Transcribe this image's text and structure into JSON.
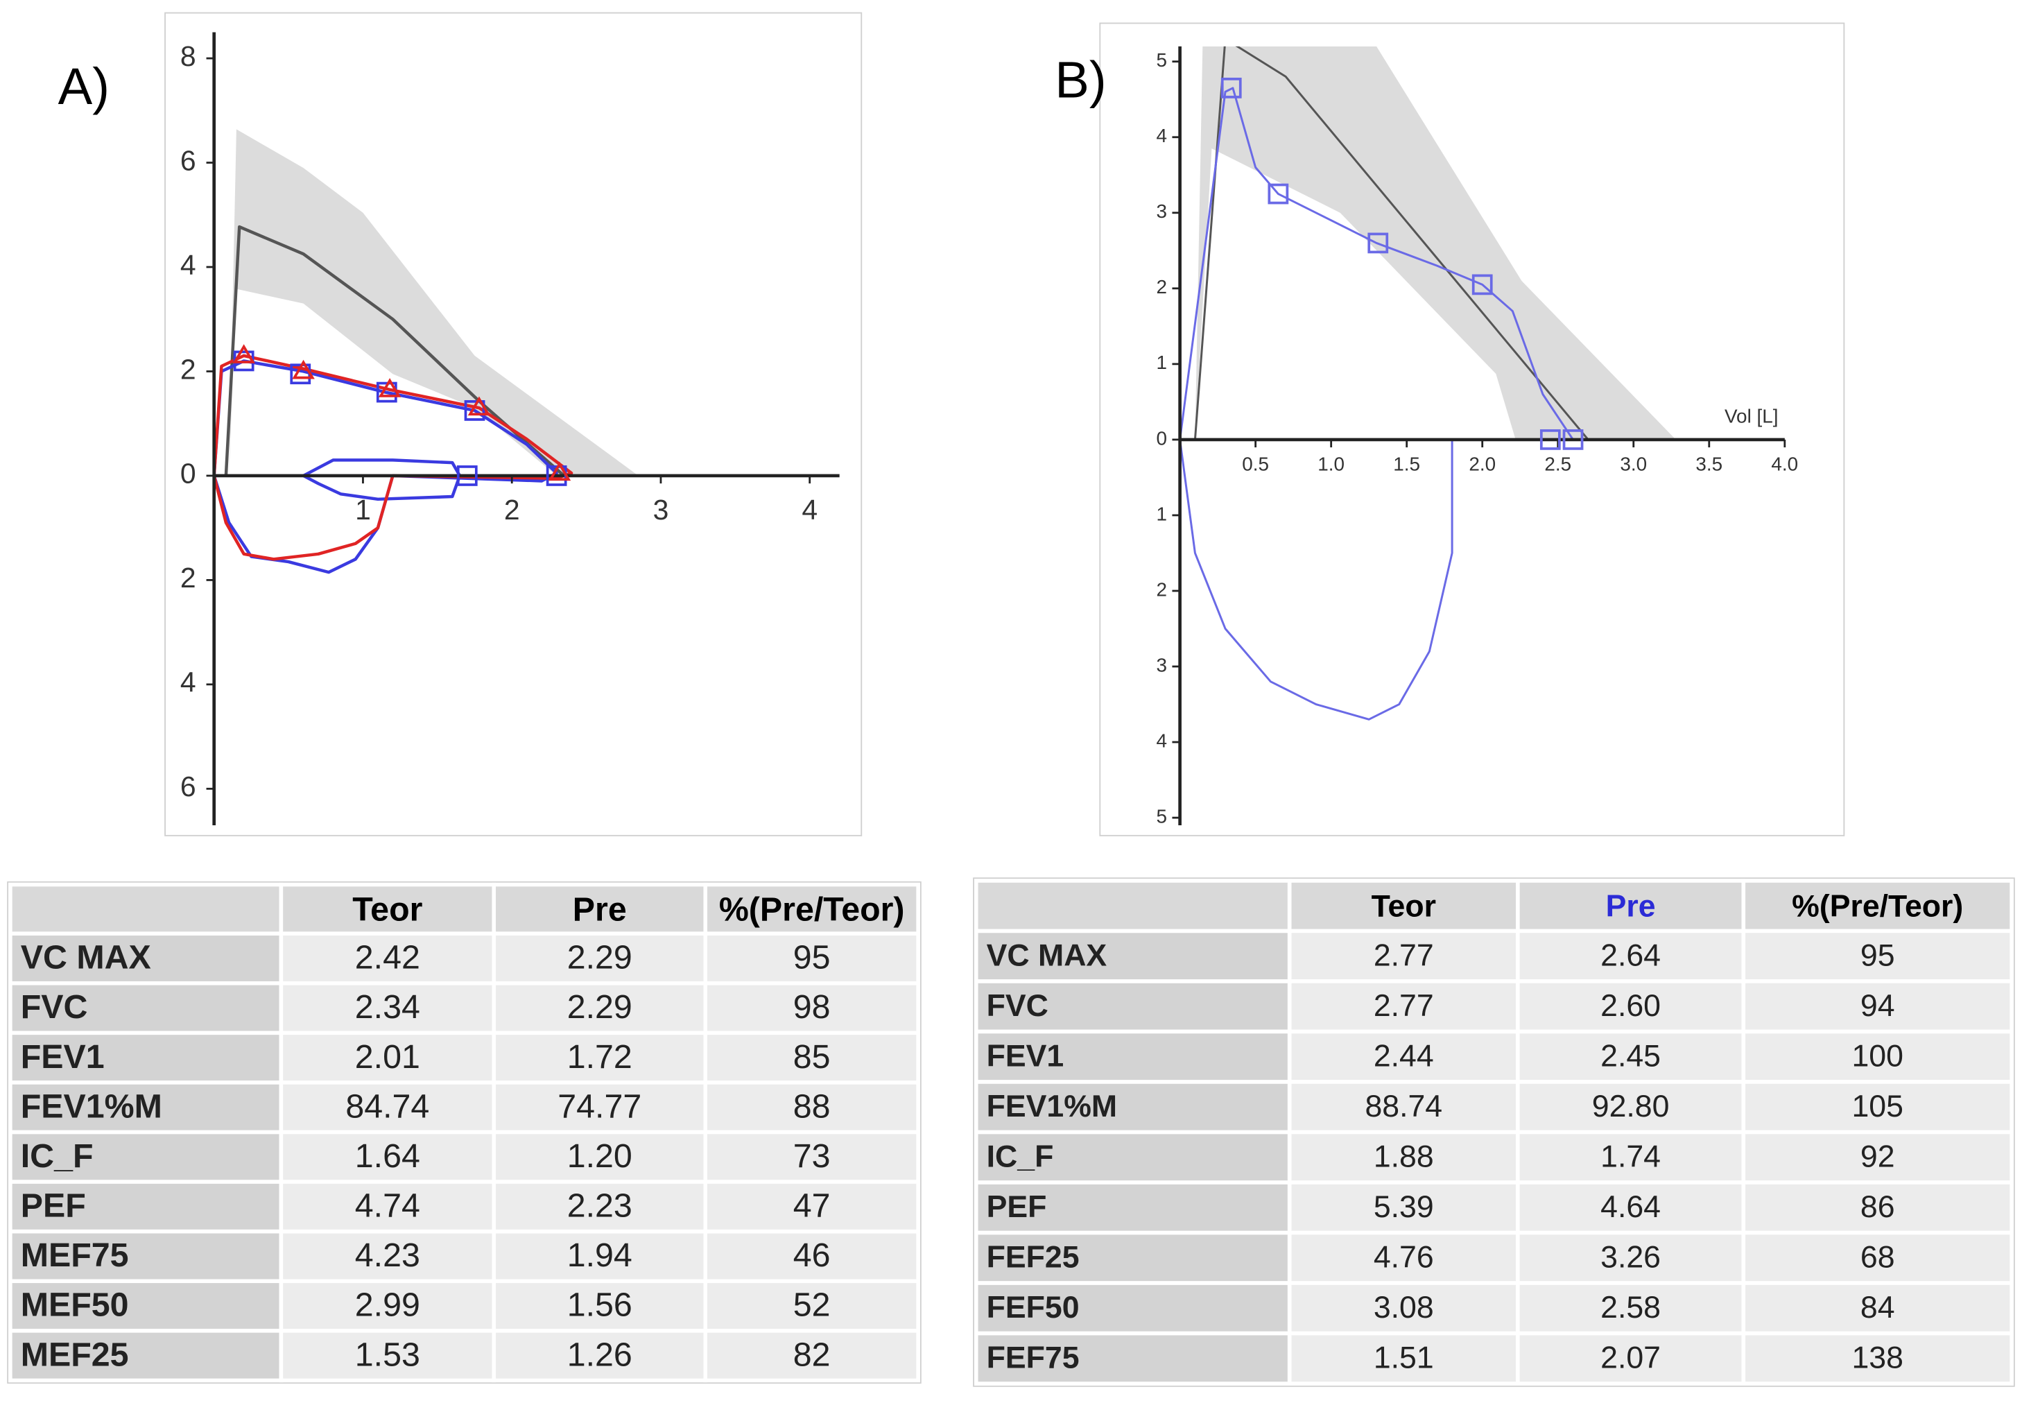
{
  "chart_data": [
    {
      "type": "line",
      "title": "A)",
      "xlim": [
        0,
        4.2
      ],
      "ylim": [
        -6.7,
        8.5
      ],
      "xticks": [
        1,
        2,
        3,
        4
      ],
      "yticks": [
        8,
        6,
        4,
        2,
        0,
        {
          "value": -2,
          "label": "2"
        },
        {
          "value": -4,
          "label": "4"
        },
        {
          "value": -6,
          "label": "6"
        }
      ],
      "band": {
        "color": "#dcdcdc",
        "x": [
          0.1,
          0.15,
          0.6,
          1.0,
          1.75,
          2.85,
          2.3,
          1.75,
          1.2,
          0.6,
          0.15
        ],
        "values": [
          0,
          6.64,
          5.9,
          5.04,
          2.3,
          0,
          0,
          1.3,
          1.95,
          3.3,
          3.58
        ]
      },
      "series": [
        {
          "color": "#555555",
          "x": [
            0.08,
            0.17,
            0.6,
            1.2,
            1.78,
            2.35
          ],
          "values": [
            0,
            4.77,
            4.25,
            3.0,
            1.43,
            0
          ]
        },
        {
          "color": "#3a3ae0",
          "x": [
            0,
            0.05,
            0.2,
            0.6,
            1.15,
            1.75,
            2.1,
            2.3,
            2.2,
            1.2,
            1.1,
            0.95,
            0.77,
            0.5,
            0.25,
            0.1,
            0
          ],
          "values": [
            0,
            2.0,
            2.2,
            2.0,
            1.6,
            1.25,
            0.6,
            0.05,
            -0.1,
            0,
            -1.0,
            -1.6,
            -1.85,
            -1.65,
            -1.55,
            -0.9,
            0
          ]
        },
        {
          "color": "#3a3ae0",
          "x": [
            0.6,
            0.8,
            1.2,
            1.6,
            1.65,
            1.6,
            1.1,
            0.85,
            0.7,
            0.6
          ],
          "values": [
            0,
            0.3,
            0.3,
            0.25,
            0,
            -0.4,
            -0.45,
            -0.35,
            -0.15,
            0
          ]
        },
        {
          "color": "#e02424",
          "x": [
            0,
            0.05,
            0.2,
            0.6,
            1.18,
            1.78,
            2.1,
            2.4,
            2.3,
            1.2,
            1.1,
            0.95,
            0.7,
            0.4,
            0.2,
            0.08,
            0
          ],
          "values": [
            0,
            2.1,
            2.3,
            2.05,
            1.65,
            1.3,
            0.7,
            0.05,
            -0.05,
            0,
            -1.0,
            -1.3,
            -1.5,
            -1.6,
            -1.5,
            -0.9,
            0
          ]
        },
        {
          "color": "#3a3ae0",
          "marker": "square",
          "x": [
            0.2,
            0.58,
            1.16,
            1.75,
            2.3,
            1.7
          ],
          "values": [
            2.2,
            1.95,
            1.6,
            1.25,
            0,
            0
          ]
        },
        {
          "color": "#e02424",
          "marker": "triangle",
          "x": [
            0.2,
            0.6,
            1.18,
            1.78,
            2.32
          ],
          "values": [
            2.3,
            2.0,
            1.65,
            1.3,
            0.05
          ]
        }
      ]
    },
    {
      "type": "line",
      "title": "B)",
      "x_label": "Vol [L]",
      "xlim": [
        0,
        4.0
      ],
      "ylim": [
        -5.1,
        5.2
      ],
      "xticks": [
        0.5,
        {
          "value": 1,
          "label": "1.0"
        },
        1.5,
        {
          "value": 2,
          "label": "2.0"
        },
        2.5,
        {
          "value": 3,
          "label": "3.0"
        },
        3.5,
        {
          "value": 4,
          "label": "4.0"
        }
      ],
      "yticks": [
        5,
        4,
        3,
        2,
        1,
        0,
        {
          "value": -1,
          "label": "1"
        },
        {
          "value": -2,
          "label": "2"
        },
        {
          "value": -3,
          "label": "3"
        },
        {
          "value": -4,
          "label": "4"
        },
        {
          "value": -5,
          "label": "5"
        }
      ],
      "band": {
        "color": "#dcdcdc",
        "x": [
          0.1,
          0.15,
          1.3,
          2.26,
          3.28,
          2.22,
          2.09,
          1.06,
          0.21
        ],
        "values": [
          0,
          5.2,
          5.2,
          2.1,
          0,
          0,
          0.87,
          3.0,
          3.85
        ]
      },
      "series": [
        {
          "color": "#555555",
          "x": [
            0.1,
            0.3,
            0.7,
            2.7
          ],
          "values": [
            0,
            5.3,
            4.8,
            0
          ]
        },
        {
          "color": "#6a6ae6",
          "x": [
            0,
            0.3,
            0.35,
            0.5,
            0.65,
            1.0,
            1.3,
            1.7,
            2.0,
            2.2,
            2.4,
            2.6,
            2.45
          ],
          "values": [
            0,
            4.6,
            4.65,
            3.6,
            3.25,
            2.9,
            2.6,
            2.3,
            2.05,
            1.7,
            0.6,
            0,
            0
          ]
        },
        {
          "color": "#6a6ae6",
          "x": [
            0,
            0.1,
            0.3,
            0.6,
            0.9,
            1.25,
            1.45,
            1.65,
            1.8,
            1.8
          ],
          "values": [
            0,
            -1.5,
            -2.5,
            -3.2,
            -3.5,
            -3.7,
            -3.5,
            -2.8,
            -1.5,
            0
          ]
        },
        {
          "color": "#6a6ae6",
          "marker": "square",
          "x": [
            0.34,
            0.65,
            1.31,
            2.0,
            2.45,
            2.6
          ],
          "values": [
            4.65,
            3.25,
            2.6,
            2.05,
            0,
            0
          ]
        }
      ]
    }
  ],
  "tables": [
    {
      "header": [
        "Teor",
        "Pre",
        "%(Pre/Teor)"
      ],
      "header_colors": [
        "#000000",
        "#000000",
        "#000000"
      ],
      "rows": [
        [
          "VC MAX",
          "2.42",
          "2.29",
          "95"
        ],
        [
          "FVC",
          "2.34",
          "2.29",
          "98"
        ],
        [
          "FEV1",
          "2.01",
          "1.72",
          "85"
        ],
        [
          "FEV1%M",
          "84.74",
          "74.77",
          "88"
        ],
        [
          "IC_F",
          "1.64",
          "1.20",
          "73"
        ],
        [
          "PEF",
          "4.74",
          "2.23",
          "47"
        ],
        [
          "MEF75",
          "4.23",
          "1.94",
          "46"
        ],
        [
          "MEF50",
          "2.99",
          "1.56",
          "52"
        ],
        [
          "MEF25",
          "1.53",
          "1.26",
          "82"
        ]
      ]
    },
    {
      "header": [
        "Teor",
        "Pre",
        "%(Pre/Teor)"
      ],
      "header_colors": [
        "#000000",
        "#2b2bd6",
        "#000000"
      ],
      "rows": [
        [
          "VC MAX",
          "2.77",
          "2.64",
          "95"
        ],
        [
          "FVC",
          "2.77",
          "2.60",
          "94"
        ],
        [
          "FEV1",
          "2.44",
          "2.45",
          "100"
        ],
        [
          "FEV1%M",
          "88.74",
          "92.80",
          "105"
        ],
        [
          "IC_F",
          "1.88",
          "1.74",
          "92"
        ],
        [
          "PEF",
          "5.39",
          "4.64",
          "86"
        ],
        [
          "FEF25",
          "4.76",
          "3.26",
          "68"
        ],
        [
          "FEF50",
          "3.08",
          "2.58",
          "84"
        ],
        [
          "FEF75",
          "1.51",
          "2.07",
          "138"
        ]
      ]
    }
  ]
}
